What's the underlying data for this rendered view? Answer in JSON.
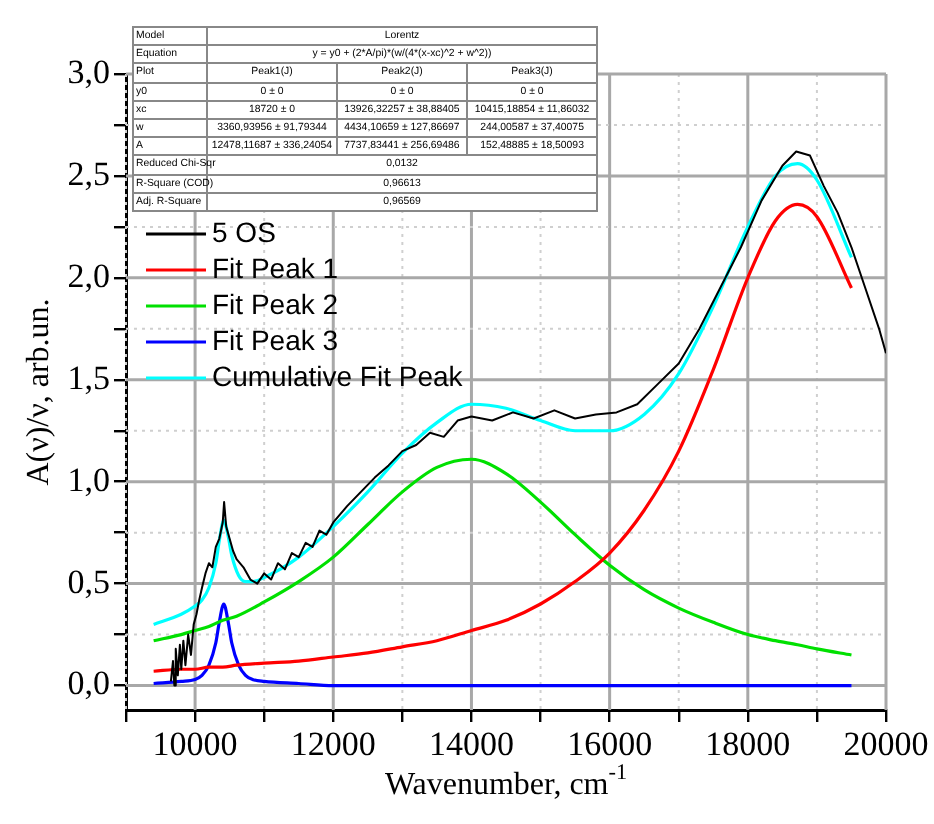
{
  "chart_data": {
    "type": "line",
    "xlabel": "Wavenumber, cm$^{-1}$",
    "ylabel": "A(ν)/ν, arb.un.",
    "xlim": [
      9000,
      20000
    ],
    "ylim": [
      -0.12,
      3.0
    ],
    "xticks": [
      {
        "value": 9000,
        "label": null
      },
      10000,
      {
        "value": 11000,
        "label": null
      },
      12000,
      {
        "value": 13000,
        "label": null
      },
      14000,
      {
        "value": 15000,
        "label": null
      },
      16000,
      {
        "value": 17000,
        "label": null
      },
      18000,
      {
        "value": 19000,
        "label": null
      },
      20000
    ],
    "yticks": [
      {
        "value": 0,
        "label": "0,0"
      },
      {
        "value": 0.25,
        "label": null
      },
      {
        "value": 0.5,
        "label": "0,5"
      },
      {
        "value": 0.75,
        "label": null
      },
      {
        "value": 1,
        "label": "1,0"
      },
      {
        "value": 1.25,
        "label": null
      },
      {
        "value": 1.5,
        "label": "1,5"
      },
      {
        "value": 1.75,
        "label": null
      },
      {
        "value": 2,
        "label": "2,0"
      },
      {
        "value": 2.25,
        "label": null
      },
      {
        "value": 2.5,
        "label": "2,5"
      },
      {
        "value": 2.75,
        "label": null
      },
      {
        "value": 3,
        "label": "3,0"
      }
    ],
    "grid": true,
    "legend": "top left",
    "line_style": "solid",
    "marker": "none",
    "series": [
      {
        "name": "5 OS",
        "color": "#000000",
        "x": [
          9650,
          9680,
          9700,
          9720,
          9750,
          9780,
          9800,
          9830,
          9860,
          9900,
          9940,
          9980,
          10020,
          10060,
          10100,
          10150,
          10200,
          10250,
          10300,
          10350,
          10400,
          10420,
          10450,
          10500,
          10550,
          10600,
          10700,
          10800,
          10900,
          11000,
          11100,
          11200,
          11300,
          11400,
          11500,
          11600,
          11700,
          11800,
          11900,
          12000,
          12200,
          12400,
          12600,
          12800,
          13000,
          13200,
          13400,
          13600,
          13800,
          14000,
          14300,
          14600,
          14900,
          15200,
          15500,
          15800,
          16100,
          16400,
          16700,
          17000,
          17300,
          17600,
          17900,
          18200,
          18500,
          18700,
          18900,
          19100,
          19300,
          19500,
          19700,
          19900,
          20000
        ],
        "values": [
          0.02,
          0.12,
          0.0,
          0.18,
          0.05,
          0.2,
          0.08,
          0.22,
          0.1,
          0.25,
          0.15,
          0.3,
          0.35,
          0.42,
          0.48,
          0.55,
          0.6,
          0.58,
          0.68,
          0.72,
          0.8,
          0.9,
          0.78,
          0.72,
          0.66,
          0.62,
          0.58,
          0.52,
          0.5,
          0.55,
          0.52,
          0.6,
          0.57,
          0.65,
          0.63,
          0.7,
          0.68,
          0.76,
          0.74,
          0.8,
          0.88,
          0.95,
          1.02,
          1.08,
          1.15,
          1.18,
          1.24,
          1.22,
          1.3,
          1.32,
          1.3,
          1.34,
          1.31,
          1.35,
          1.31,
          1.33,
          1.34,
          1.38,
          1.48,
          1.58,
          1.75,
          1.95,
          2.15,
          2.38,
          2.55,
          2.62,
          2.6,
          2.45,
          2.32,
          2.15,
          1.95,
          1.75,
          1.63
        ]
      },
      {
        "name": "Fit Peak 1",
        "color": "#ff0000",
        "x": [
          9400,
          9800,
          10000,
          10200,
          10400,
          10600,
          11000,
          11500,
          12000,
          12500,
          13000,
          13500,
          14000,
          14500,
          15000,
          15500,
          16000,
          16500,
          17000,
          17500,
          18000,
          18400,
          18720,
          19000,
          19500
        ],
        "values": [
          0.07,
          0.08,
          0.08,
          0.09,
          0.09,
          0.1,
          0.11,
          0.12,
          0.14,
          0.16,
          0.19,
          0.22,
          0.27,
          0.32,
          0.4,
          0.51,
          0.65,
          0.86,
          1.15,
          1.55,
          2.0,
          2.28,
          2.36,
          2.3,
          1.95
        ]
      },
      {
        "name": "Fit Peak 2",
        "color": "#00e000",
        "x": [
          9400,
          9800,
          10000,
          10200,
          10400,
          10600,
          11000,
          11500,
          12000,
          12500,
          13000,
          13500,
          14000,
          14500,
          15000,
          15500,
          16000,
          16500,
          17000,
          17500,
          18000,
          18400,
          18720,
          19000,
          19500
        ],
        "values": [
          0.22,
          0.25,
          0.27,
          0.29,
          0.32,
          0.34,
          0.41,
          0.51,
          0.63,
          0.79,
          0.95,
          1.07,
          1.11,
          1.04,
          0.9,
          0.74,
          0.59,
          0.47,
          0.38,
          0.31,
          0.25,
          0.22,
          0.2,
          0.18,
          0.15
        ]
      },
      {
        "name": "Fit Peak 3",
        "color": "#0000ff",
        "x": [
          9400,
          9800,
          10000,
          10100,
          10200,
          10300,
          10350,
          10415,
          10480,
          10530,
          10630,
          10730,
          10830,
          11000,
          11500,
          12000,
          14000,
          16000,
          19500
        ],
        "values": [
          0.01,
          0.02,
          0.03,
          0.05,
          0.1,
          0.21,
          0.31,
          0.4,
          0.31,
          0.21,
          0.1,
          0.05,
          0.03,
          0.02,
          0.01,
          0.0,
          0.0,
          0.0,
          0.0
        ]
      },
      {
        "name": "Cumulative Fit Peak",
        "color": "#00ffff",
        "x": [
          9400,
          9800,
          10000,
          10100,
          10200,
          10300,
          10350,
          10415,
          10480,
          10530,
          10630,
          10730,
          10830,
          11000,
          11500,
          12000,
          12500,
          13000,
          13500,
          14000,
          14500,
          15000,
          15500,
          16000,
          16500,
          17000,
          17500,
          18000,
          18400,
          18720,
          19000,
          19500
        ],
        "values": [
          0.3,
          0.35,
          0.39,
          0.42,
          0.48,
          0.6,
          0.71,
          0.81,
          0.73,
          0.64,
          0.54,
          0.51,
          0.51,
          0.53,
          0.63,
          0.78,
          0.95,
          1.14,
          1.29,
          1.38,
          1.36,
          1.3,
          1.25,
          1.25,
          1.33,
          1.53,
          1.86,
          2.25,
          2.5,
          2.56,
          2.48,
          2.1
        ]
      }
    ],
    "annotations": [
      "Model",
      "Lorentz",
      "Equation",
      "y = y0 + (2*A/pi)*(w/(4*(x-xc)^2 + w^2))",
      "Plot",
      "Peak1(J)",
      "Peak2(J)",
      "Peak3(J)",
      "y0",
      "0 ± 0",
      "0 ± 0",
      "0 ± 0",
      "xc",
      "18720 ± 0",
      "13926,32257 ± 38,88405",
      "10415,18854 ± 11,86032",
      "w",
      "3360,93956 ± 91,79344",
      "4434,10659 ± 127,86697",
      "244,00587 ± 37,40075",
      "A",
      "12478,11687 ± 336,24054",
      "7737,83441 ± 256,69486",
      "152,48885 ± 18,50093",
      "Reduced Chi-Sqr",
      "0,0132",
      "R-Square (COD)",
      "0,96613",
      "Adj. R-Square",
      "0,96569"
    ]
  }
}
